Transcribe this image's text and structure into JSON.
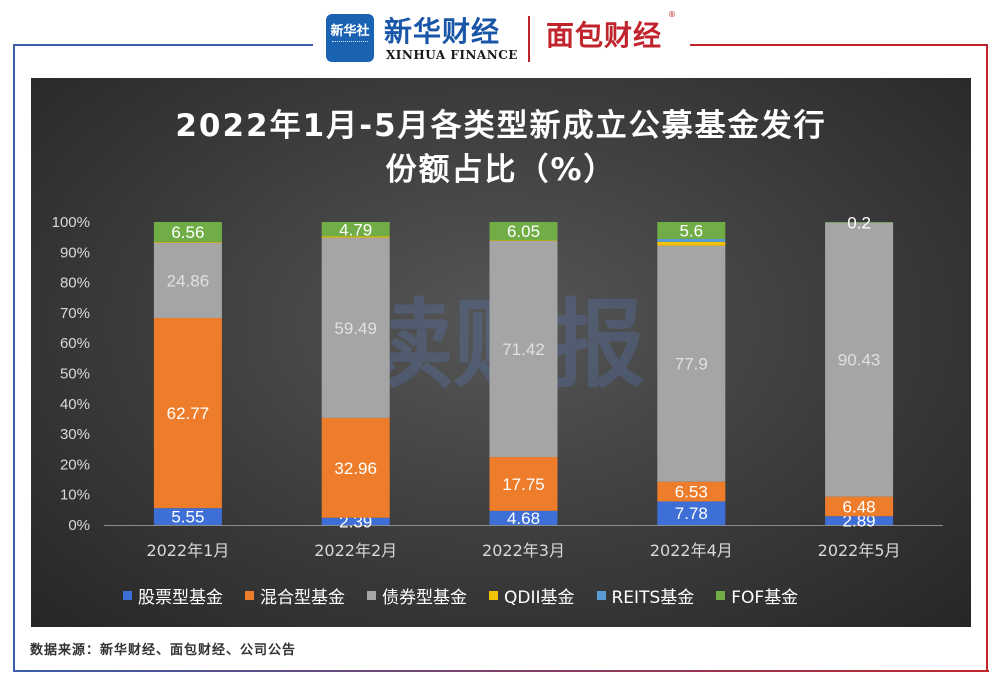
{
  "header": {
    "seal_text": "新华社",
    "brand_cn": "新华财经",
    "brand_en": "XINHUA FINANCE",
    "brand2": "面包财经",
    "brand2_mark": "®"
  },
  "colors": {
    "frame_left": "#3b5fa8",
    "frame_right": "#c0252d",
    "text": "#ffffff",
    "axis_text": "#d9d9d9",
    "label_on_gray": "#e0e0e0"
  },
  "chart_data": {
    "type": "bar",
    "stacked": true,
    "title_line1": "2022年1月-5月各类型新成立公募基金发行",
    "title_line2": "份额占比（%）",
    "categories": [
      "2022年1月",
      "2022年2月",
      "2022年3月",
      "2022年4月",
      "2022年5月"
    ],
    "yticks": [
      "0%",
      "10%",
      "20%",
      "30%",
      "40%",
      "50%",
      "60%",
      "70%",
      "80%",
      "90%",
      "100%"
    ],
    "ylim": [
      0,
      100
    ],
    "series": [
      {
        "name": "股票型基金",
        "color": "#3d6fd6",
        "values": [
          5.55,
          2.39,
          4.68,
          7.78,
          2.89
        ],
        "labels": [
          "5.55",
          "2.39",
          "4.68",
          "7.78",
          "2.89"
        ]
      },
      {
        "name": "混合型基金",
        "color": "#ee7d2b",
        "values": [
          62.77,
          32.96,
          17.75,
          6.53,
          6.48
        ],
        "labels": [
          "62.77",
          "32.96",
          "17.75",
          "6.53",
          "6.48"
        ]
      },
      {
        "name": "债券型基金",
        "color": "#a5a5a5",
        "values": [
          24.86,
          59.49,
          71.42,
          77.9,
          90.43
        ],
        "labels": [
          "24.86",
          "59.49",
          "71.42",
          "77.9",
          "90.43"
        ]
      },
      {
        "name": "QDII基金",
        "color": "#f2c100",
        "values": [
          0.26,
          0.37,
          0.1,
          1.2,
          0
        ],
        "labels": [
          "",
          "",
          "",
          "",
          ""
        ]
      },
      {
        "name": "REITS基金",
        "color": "#5b9bd5",
        "values": [
          0,
          0,
          0,
          0.99,
          0
        ],
        "labels": [
          "",
          "",
          "",
          "",
          ""
        ]
      },
      {
        "name": "FOF基金",
        "color": "#70ad47",
        "values": [
          6.56,
          4.79,
          6.05,
          5.6,
          0.2
        ],
        "labels": [
          "6.56",
          "4.79",
          "6.05",
          "5.6",
          "0.2"
        ]
      }
    ],
    "grid": false,
    "legend_position": "bottom",
    "watermark": "读财报"
  },
  "source": "数据来源：新华财经、面包财经、公司公告"
}
